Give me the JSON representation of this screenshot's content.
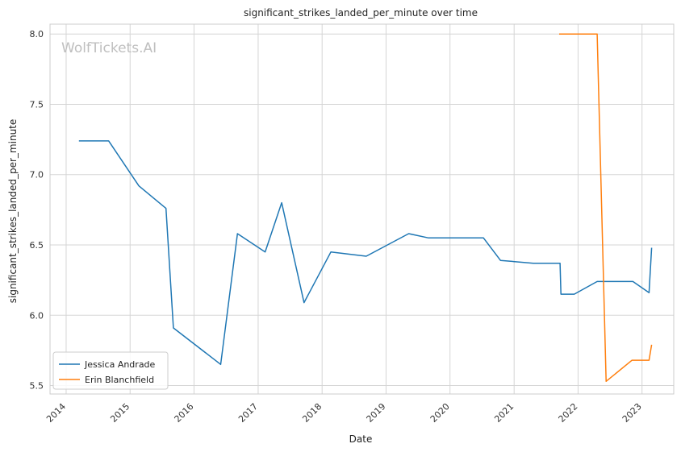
{
  "chart_data": {
    "type": "line",
    "title": "significant_strikes_landed_per_minute over time",
    "xlabel": "Date",
    "ylabel": "significant_strikes_landed_per_minute",
    "watermark": "WolfTickets.AI",
    "xlim": [
      "2013-10-01",
      "2023-07-01"
    ],
    "ylim": [
      5.44,
      8.07
    ],
    "x_ticks": [
      "2014",
      "2015",
      "2016",
      "2017",
      "2018",
      "2019",
      "2020",
      "2021",
      "2022",
      "2023"
    ],
    "y_ticks": [
      5.5,
      6.0,
      6.5,
      7.0,
      7.5,
      8.0
    ],
    "grid": true,
    "legend_position": "lower-left",
    "series": [
      {
        "name": "Jessica Andrade",
        "color": "#1f77b4",
        "points": [
          [
            "2014-03-15",
            7.24
          ],
          [
            "2014-09-01",
            7.24
          ],
          [
            "2015-02-20",
            6.92
          ],
          [
            "2015-07-25",
            6.76
          ],
          [
            "2015-09-05",
            5.91
          ],
          [
            "2016-06-01",
            5.65
          ],
          [
            "2016-09-05",
            6.58
          ],
          [
            "2017-02-10",
            6.45
          ],
          [
            "2017-05-15",
            6.8
          ],
          [
            "2017-09-20",
            6.09
          ],
          [
            "2018-02-20",
            6.45
          ],
          [
            "2018-09-10",
            6.42
          ],
          [
            "2019-05-10",
            6.58
          ],
          [
            "2019-09-01",
            6.55
          ],
          [
            "2020-07-10",
            6.55
          ],
          [
            "2020-10-15",
            6.39
          ],
          [
            "2021-04-20",
            6.37
          ],
          [
            "2021-09-20",
            6.37
          ],
          [
            "2021-09-25",
            6.15
          ],
          [
            "2021-12-10",
            6.15
          ],
          [
            "2022-04-20",
            6.24
          ],
          [
            "2022-11-10",
            6.24
          ],
          [
            "2023-02-10",
            6.16
          ],
          [
            "2023-02-25",
            6.48
          ]
        ]
      },
      {
        "name": "Erin Blanchfield",
        "color": "#ff7f0e",
        "points": [
          [
            "2021-09-15",
            8.0
          ],
          [
            "2022-04-20",
            8.0
          ],
          [
            "2022-06-10",
            5.53
          ],
          [
            "2022-11-05",
            5.68
          ],
          [
            "2023-02-10",
            5.68
          ],
          [
            "2023-02-25",
            5.79
          ]
        ]
      }
    ]
  }
}
